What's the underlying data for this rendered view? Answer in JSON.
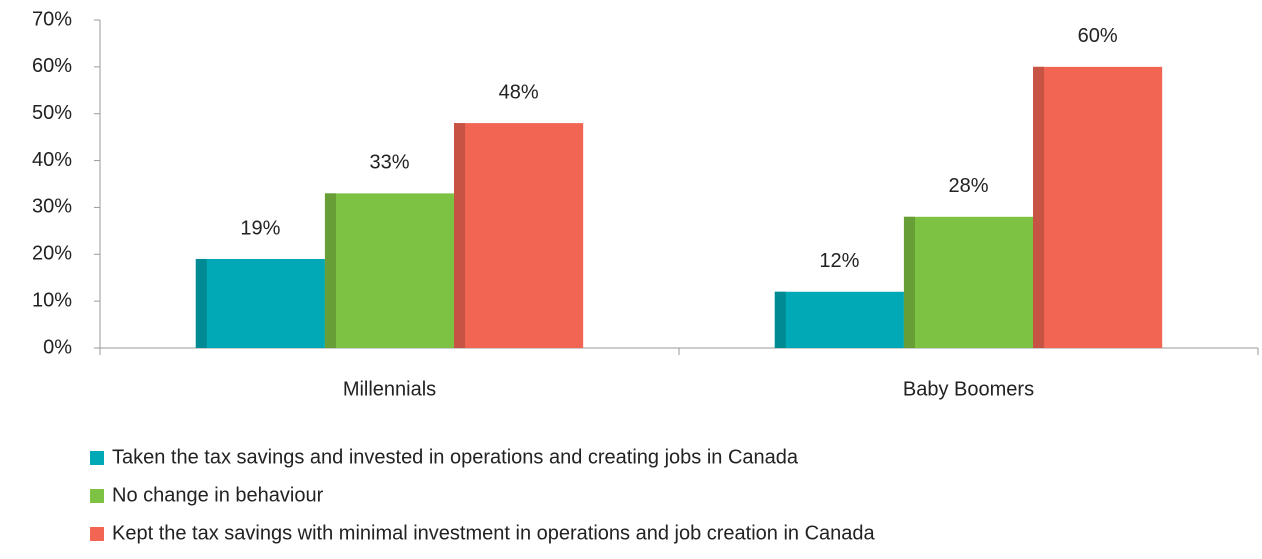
{
  "chart_data": {
    "type": "bar",
    "categories": [
      "Millennials",
      "Baby Boomers"
    ],
    "series": [
      {
        "name": "Taken the tax savings and invested in operations and creating jobs in Canada",
        "color": "#00a9b5",
        "values": [
          19,
          12
        ],
        "value_labels": [
          "19%",
          "12%"
        ]
      },
      {
        "name": "No change in behaviour",
        "color": "#7dc242",
        "values": [
          33,
          28
        ],
        "value_labels": [
          "33%",
          "28%"
        ]
      },
      {
        "name": "Kept the tax savings with minimal investment in operations and job creation in Canada",
        "color": "#f26552",
        "values": [
          48,
          60
        ],
        "value_labels": [
          "48%",
          "60%"
        ]
      }
    ],
    "ylim": [
      0,
      70
    ],
    "yticks": [
      {
        "value": 0,
        "label": "0%"
      },
      {
        "value": 10,
        "label": "10%"
      },
      {
        "value": 20,
        "label": "20%"
      },
      {
        "value": 30,
        "label": "30%"
      },
      {
        "value": 40,
        "label": "40%"
      },
      {
        "value": 50,
        "label": "50%"
      },
      {
        "value": 60,
        "label": "60%"
      },
      {
        "value": 70,
        "label": "70%"
      }
    ],
    "grid": false,
    "legend": "bottom"
  }
}
